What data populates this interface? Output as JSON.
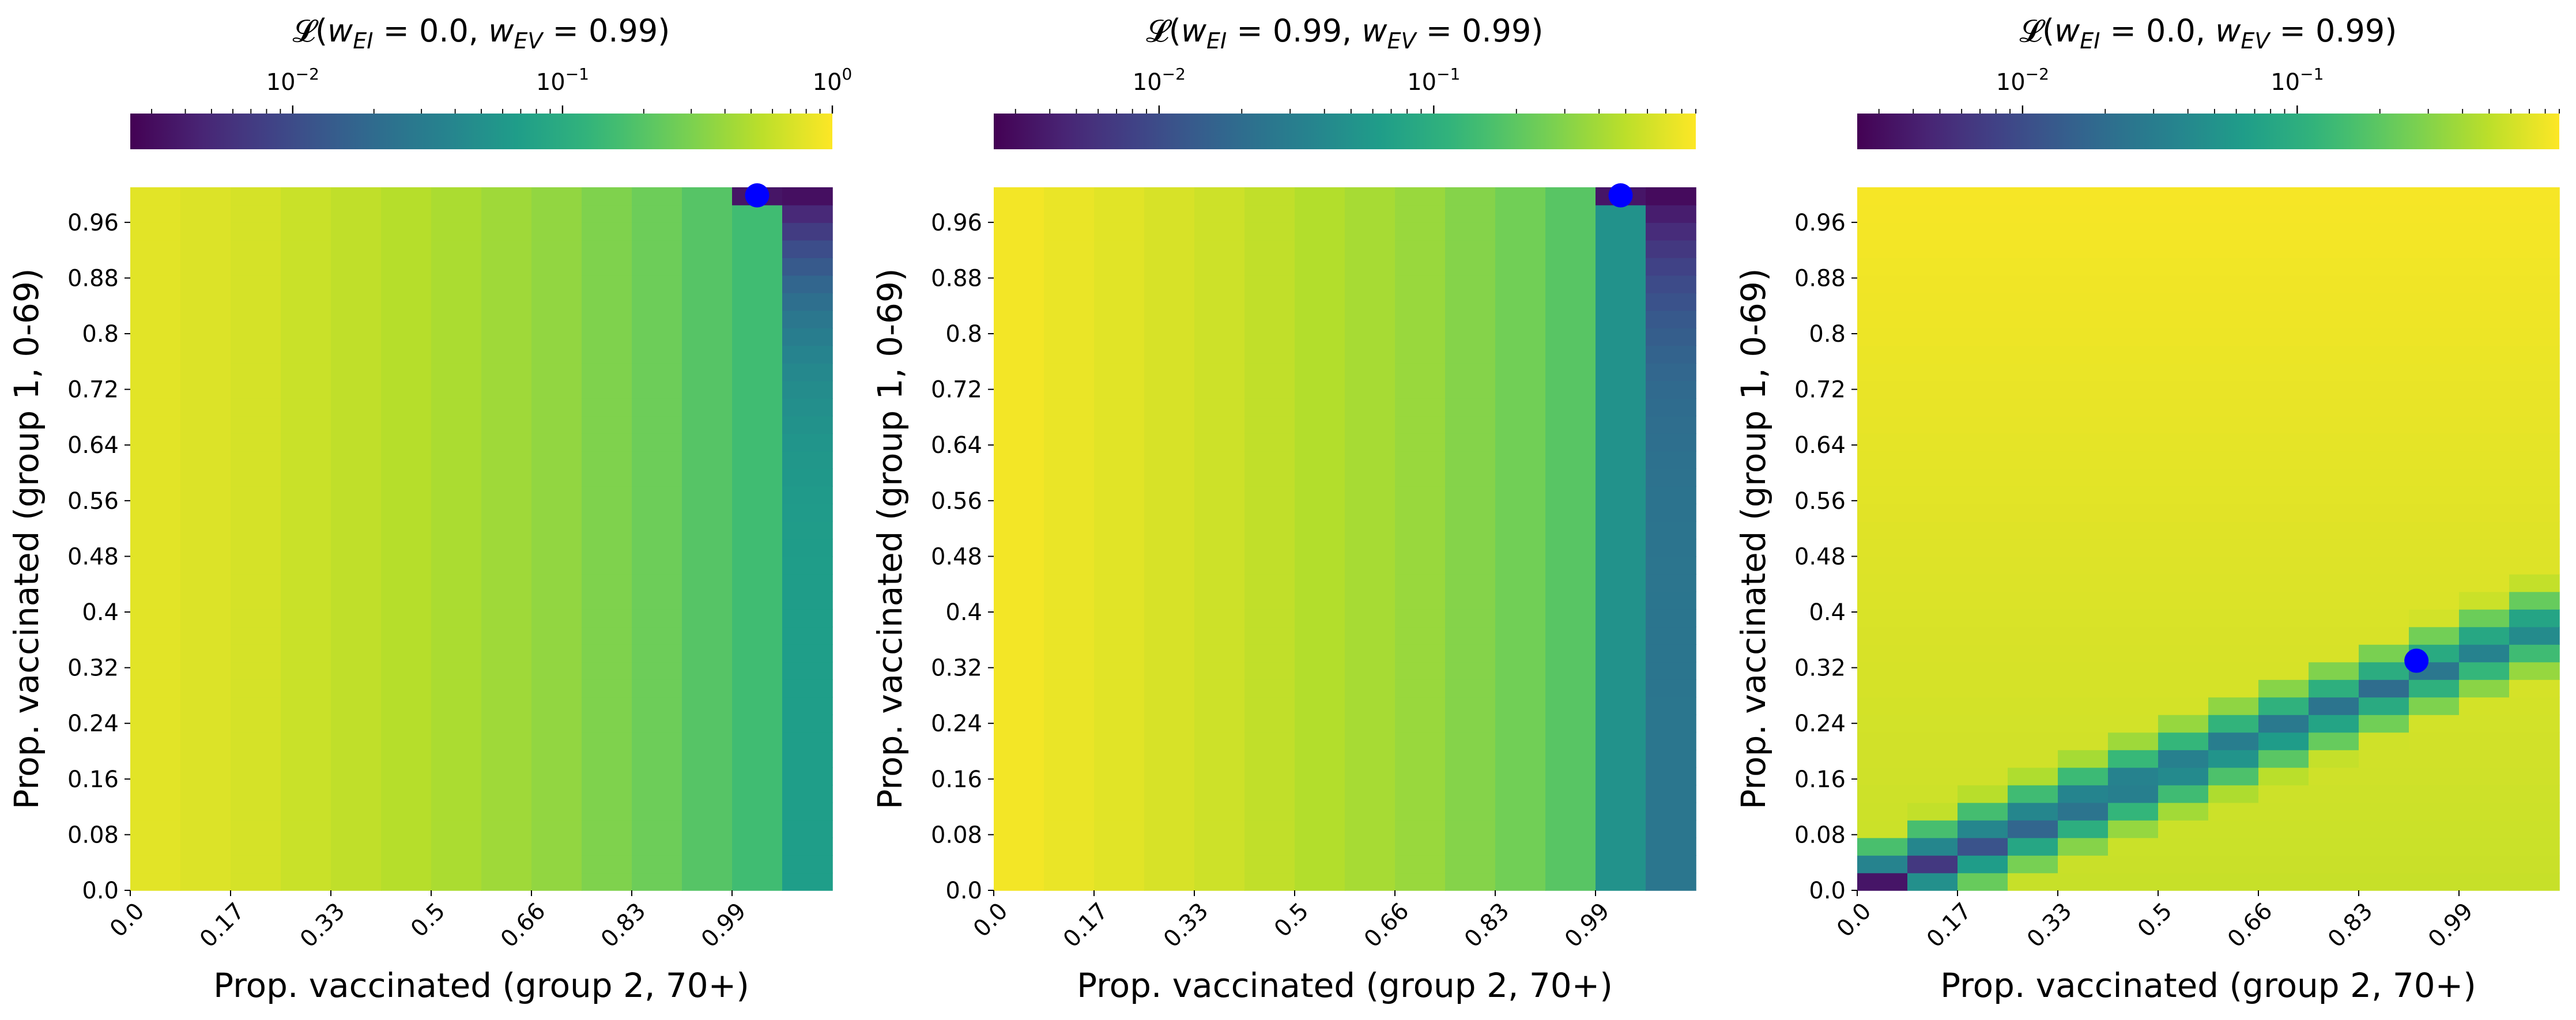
{
  "chart_data": [
    {
      "type": "heatmap",
      "title": "𝓛(w_EI = 0.0, w_EV = 0.99)",
      "title_parts": {
        "pre": "𝓛(",
        "w1": "w",
        "s1": "EI",
        "eq1": " = 0.0, ",
        "w2": "w",
        "s2": "EV",
        "eq2": " = 0.99)"
      },
      "xlabel": "Prop. vaccinated (group 2, 70+)",
      "ylabel": "Prop. vaccinated (group 1, 0-69)",
      "xticks": [
        "0.0",
        "0.17",
        "0.33",
        "0.5",
        "0.66",
        "0.83",
        "0.99"
      ],
      "yticks": [
        "0.0",
        "0.08",
        "0.16",
        "0.24",
        "0.32",
        "0.4",
        "0.48",
        "0.56",
        "0.64",
        "0.72",
        "0.8",
        "0.88",
        "0.96"
      ],
      "colorbar": {
        "scale": "log",
        "orientation": "horizontal",
        "location": "top",
        "colormap": "viridis_r",
        "range": [
          0.0025,
          1.0
        ],
        "major_ticks": [
          {
            "base": "10",
            "exp": "−2",
            "value": 0.01
          },
          {
            "base": "10",
            "exp": "−1",
            "value": 0.1
          },
          {
            "base": "10",
            "exp": "0",
            "value": 1.0
          }
        ]
      },
      "column_loss": [
        0.78,
        0.74,
        0.69,
        0.62,
        0.57,
        0.52,
        0.47,
        0.42,
        0.37,
        0.31,
        0.26,
        0.2,
        0.155,
        0.07
      ],
      "top_right_column_gradient": {
        "bottom": 0.07,
        "top": 0.0025
      },
      "optimum": {
        "x": 0.99,
        "y": 0.99
      }
    },
    {
      "type": "heatmap",
      "title": "𝓛(w_EI = 0.99, w_EV = 0.99)",
      "title_parts": {
        "pre": "𝓛(",
        "w1": "w",
        "s1": "EI",
        "eq1": " = 0.99, ",
        "w2": "w",
        "s2": "EV",
        "eq2": " = 0.99)"
      },
      "xlabel": "Prop. vaccinated (group 2, 70+)",
      "ylabel": "Prop. vaccinated (group 1, 0-69)",
      "xticks": [
        "0.0",
        "0.17",
        "0.33",
        "0.5",
        "0.66",
        "0.83",
        "0.99"
      ],
      "yticks": [
        "0.0",
        "0.08",
        "0.16",
        "0.24",
        "0.32",
        "0.4",
        "0.48",
        "0.56",
        "0.64",
        "0.72",
        "0.8",
        "0.88",
        "0.96"
      ],
      "colorbar": {
        "scale": "log",
        "orientation": "horizontal",
        "location": "top",
        "colormap": "viridis_r",
        "range": [
          0.0025,
          0.9
        ],
        "major_ticks": [
          {
            "base": "10",
            "exp": "−2",
            "value": 0.01
          },
          {
            "base": "10",
            "exp": "−1",
            "value": 0.1
          }
        ]
      },
      "column_loss": [
        0.82,
        0.76,
        0.7,
        0.64,
        0.58,
        0.52,
        0.46,
        0.41,
        0.36,
        0.3,
        0.25,
        0.19,
        0.05,
        0.025
      ],
      "top_right_column_gradient": {
        "bottom": 0.025,
        "top": 0.0025
      },
      "optimum": {
        "x": 0.99,
        "y": 0.99
      }
    },
    {
      "type": "heatmap",
      "title": "𝓛(w_EI = 0.0, w_EV = 0.99)",
      "title_parts": {
        "pre": "𝓛(",
        "w1": "w",
        "s1": "EI",
        "eq1": " = 0.0, ",
        "w2": "w",
        "s2": "EV",
        "eq2": " = 0.99)"
      },
      "xlabel": "Prop. vaccinated (group 2, 70+)",
      "ylabel": "Prop. vaccinated (group 1, 0-69)",
      "xticks": [
        "0.0",
        "0.17",
        "0.33",
        "0.5",
        "0.66",
        "0.83",
        "0.99"
      ],
      "yticks": [
        "0.0",
        "0.08",
        "0.16",
        "0.24",
        "0.32",
        "0.4",
        "0.48",
        "0.56",
        "0.64",
        "0.72",
        "0.8",
        "0.88",
        "0.96"
      ],
      "colorbar": {
        "scale": "log",
        "orientation": "horizontal",
        "location": "top",
        "colormap": "viridis_r",
        "range": [
          0.0025,
          0.9
        ],
        "major_ticks": [
          {
            "base": "10",
            "exp": "−2",
            "value": 0.01
          },
          {
            "base": "10",
            "exp": "−1",
            "value": 0.1
          }
        ]
      },
      "ridge": {
        "slope_y_per_x": 0.33,
        "min_loss": 0.003,
        "background_low": 0.55,
        "background_high": 0.85
      },
      "optimum": {
        "x": 0.92,
        "y": 0.33
      }
    }
  ]
}
